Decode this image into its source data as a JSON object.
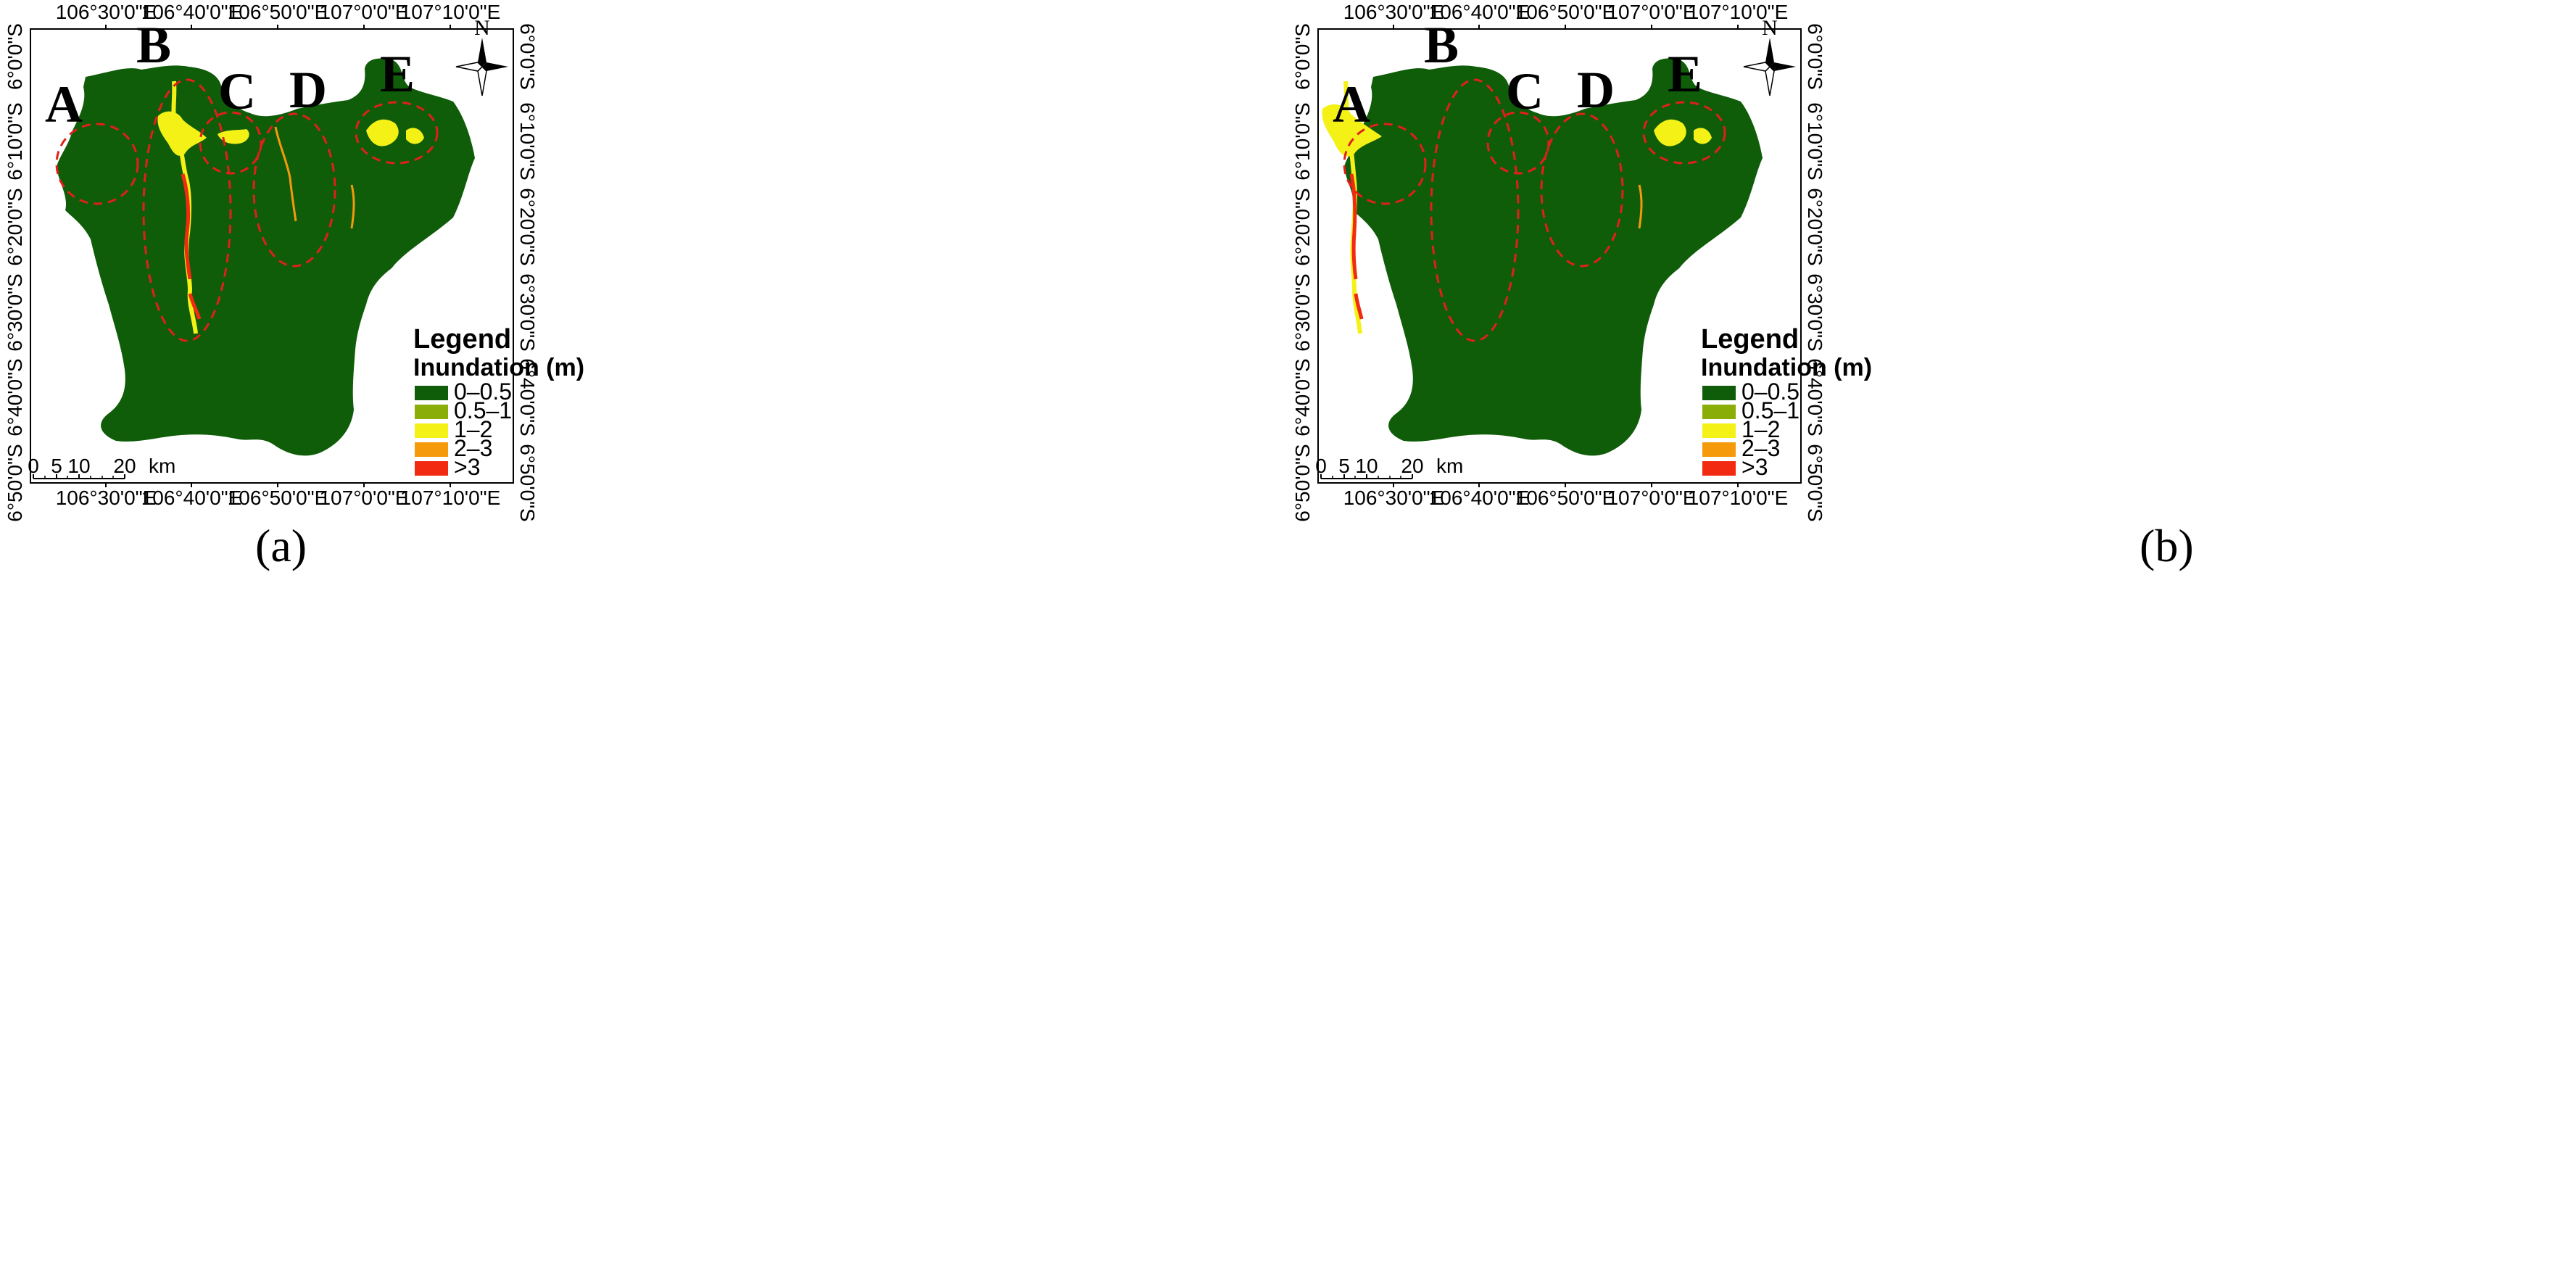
{
  "colors": {
    "land": "#0f5c09",
    "circle": "#e0201a",
    "c0": "#0f5c09",
    "c1": "#8aad08",
    "c2": "#f4f117",
    "c3": "#f59a0b",
    "c4": "#f22a12"
  },
  "top_ticks": [
    "106°30'0\"E",
    "106°40'0\"E",
    "106°50'0\"E",
    "107°0'0\"E",
    "107°10'0\"E"
  ],
  "bottom_ticks": [
    "106°30'0\"E",
    "106°40'0\"E",
    "106°50'0\"E",
    "107°0'0\"E",
    "107°10'0\"E"
  ],
  "lat_ticks": [
    "6°0'0\"S",
    "6°10'0\"S",
    "6°20'0\"S",
    "6°30'0\"S",
    "6°40'0\"S",
    "6°50'0\"S"
  ],
  "north_label": "N",
  "regions": [
    "A",
    "B",
    "C",
    "D",
    "E"
  ],
  "legend": {
    "title": "Legend",
    "subtitle": "Inundation (m)",
    "items": [
      "0–0.5",
      "0.5–1",
      "1–2",
      "2–3",
      ">3"
    ]
  },
  "scale_bar": {
    "labels": [
      "0",
      "5",
      "10",
      "20"
    ],
    "unit": "km"
  },
  "panels": [
    {
      "caption": "(a)"
    },
    {
      "caption": "(b)"
    }
  ]
}
